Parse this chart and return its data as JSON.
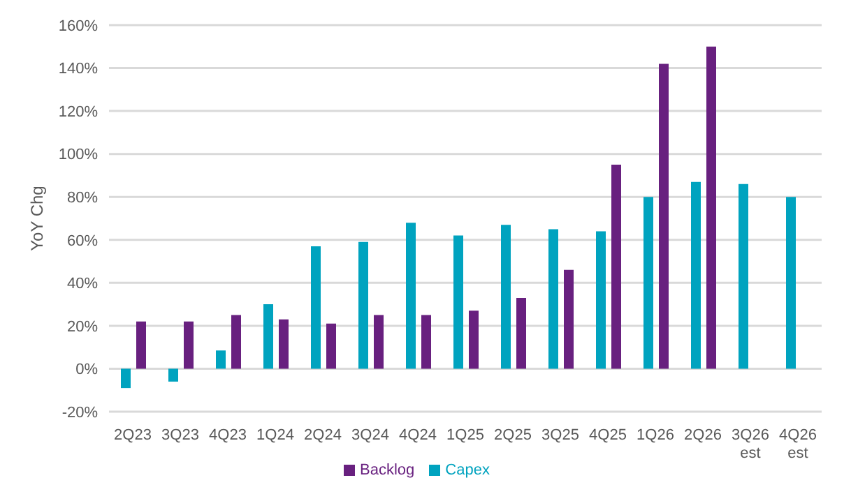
{
  "chart_data": {
    "type": "bar",
    "ylabel": "YoY Chg",
    "categories": [
      "2Q23",
      "3Q23",
      "4Q23",
      "1Q24",
      "2Q24",
      "3Q24",
      "4Q24",
      "1Q25",
      "2Q25",
      "3Q25",
      "4Q25",
      "1Q26",
      "2Q26",
      "3Q26\nest",
      "4Q26\nest"
    ],
    "series": [
      {
        "name": "Capex",
        "color": "#00a3bf",
        "values": [
          -9,
          -6,
          8.5,
          30,
          57,
          59,
          68,
          62,
          67,
          65,
          64,
          80,
          87,
          86,
          80
        ]
      },
      {
        "name": "Backlog",
        "color": "#68207f",
        "values": [
          22,
          22,
          25,
          23,
          21,
          25,
          25,
          27,
          33,
          46,
          95,
          142,
          150,
          null,
          null
        ]
      }
    ],
    "ylim": [
      -20,
      160
    ],
    "yticks": [
      {
        "value": -20,
        "label": "-20%"
      },
      {
        "value": 0,
        "label": "0%"
      },
      {
        "value": 20,
        "label": "20%"
      },
      {
        "value": 40,
        "label": "40%"
      },
      {
        "value": 60,
        "label": "60%"
      },
      {
        "value": 80,
        "label": "80%"
      },
      {
        "value": 100,
        "label": "100%"
      },
      {
        "value": 120,
        "label": "120%"
      },
      {
        "value": 140,
        "label": "140%"
      },
      {
        "value": 160,
        "label": "160%"
      }
    ],
    "grid": "y",
    "legend": "bottom"
  }
}
